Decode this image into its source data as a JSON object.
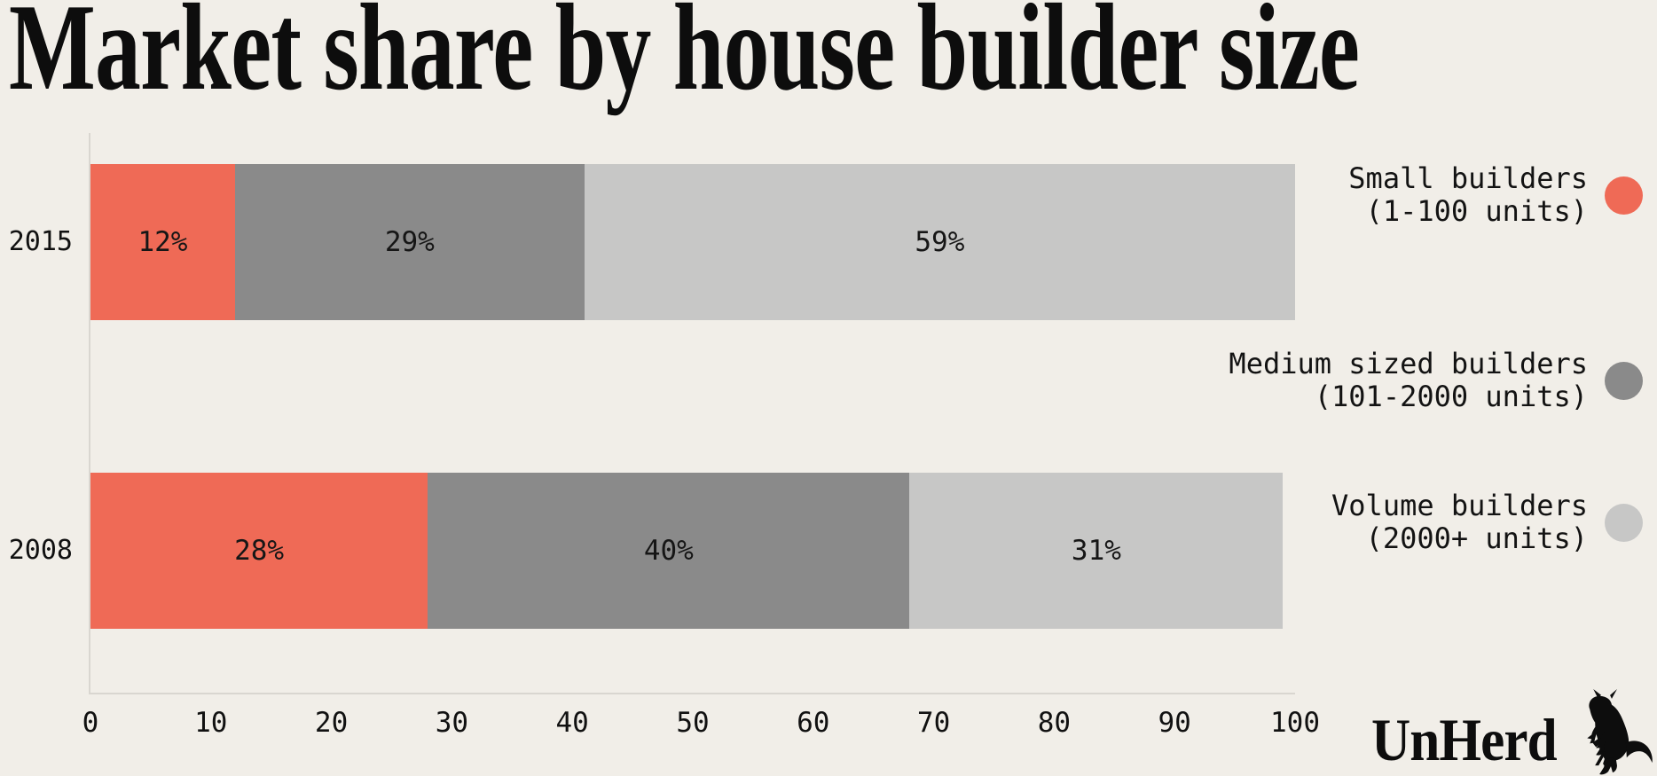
{
  "title": "Market share by house builder size",
  "brand": {
    "wordmark": "UnHerd"
  },
  "colors": {
    "background": "#f1eee8",
    "small_builders": "#ef6a56",
    "medium_builders": "#8a8a8a",
    "volume_builders": "#c7c7c6",
    "axis_line": "#d9d6d0",
    "text": "#131313"
  },
  "chart_data": {
    "type": "bar",
    "orientation": "horizontal",
    "stacked": true,
    "grid": false,
    "categories": [
      "2015",
      "2008"
    ],
    "series": [
      {
        "name": "Small builders (1-100 units)",
        "color": "#ef6a56",
        "values": [
          12,
          28
        ]
      },
      {
        "name": "Medium sized builders (101-2000 units)",
        "color": "#8a8a8a",
        "values": [
          29,
          40
        ]
      },
      {
        "name": "Volume builders (2000+ units)",
        "color": "#c7c7c6",
        "values": [
          59,
          31
        ]
      }
    ],
    "value_labels": [
      [
        "12%",
        "29%",
        "59%"
      ],
      [
        "28%",
        "40%",
        "31%"
      ]
    ],
    "x_ticks": [
      0,
      10,
      20,
      30,
      40,
      50,
      60,
      70,
      80,
      90,
      100
    ],
    "xlim": [
      0,
      100
    ],
    "legend_position": "right",
    "legend": [
      {
        "line1": "Small builders",
        "line2": "(1-100 units)",
        "color": "#ef6a56"
      },
      {
        "line1": "Medium sized builders",
        "line2": "(101-2000 units)",
        "color": "#8a8a8a"
      },
      {
        "line1": "Volume builders",
        "line2": "(2000+ units)",
        "color": "#c7c7c6"
      }
    ]
  }
}
